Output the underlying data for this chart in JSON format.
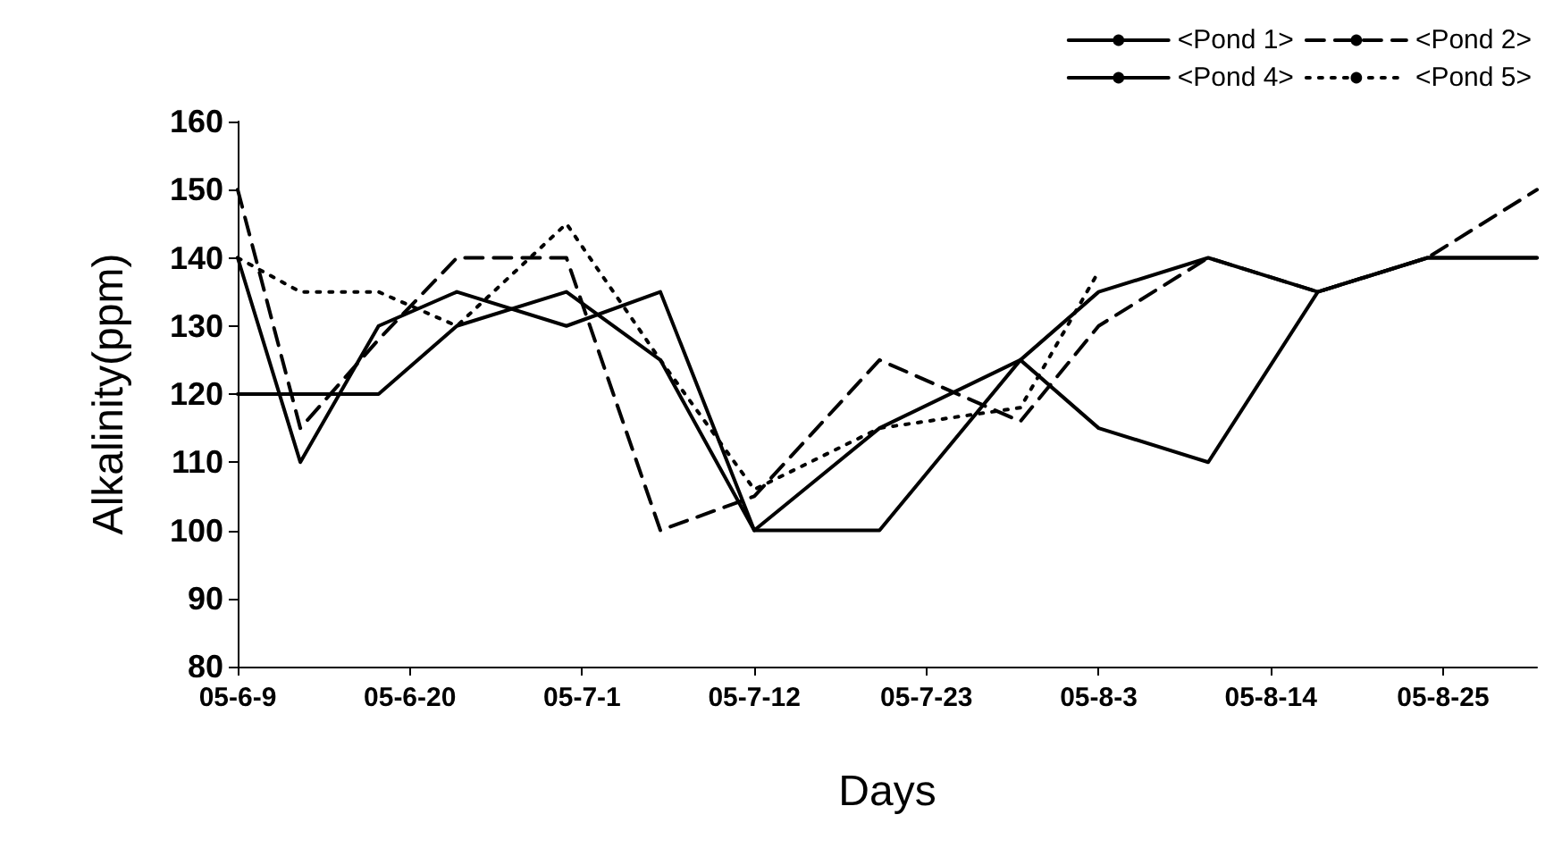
{
  "chart_data": {
    "type": "line",
    "xlabel": "Days",
    "ylabel": "Alkalinity(ppm)",
    "x": [
      "--06-09",
      "--06-13",
      "--06-18",
      "--06-23",
      "--06-30",
      "--07-06",
      "--07-12",
      "--07-20",
      "--07-29",
      "--08-03",
      "--08-10",
      "--08-17",
      "--08-24",
      "--08-31"
    ],
    "series": [
      {
        "name": "<Pond 1>",
        "color": "#000000",
        "line_style": "solid",
        "values": [
          140,
          110,
          130,
          135,
          130,
          135,
          100,
          115,
          125,
          115,
          110,
          135,
          140,
          140
        ]
      },
      {
        "name": "<Pond 2>",
        "color": "#000000",
        "line_style": "dashed",
        "values": [
          150,
          115,
          128,
          140,
          140,
          100,
          105,
          125,
          116,
          130,
          140,
          135,
          140,
          150
        ]
      },
      {
        "name": "<Pond 4>",
        "color": "#000000",
        "line_style": "solid",
        "values": [
          120,
          120,
          120,
          130,
          135,
          125,
          100,
          100,
          125,
          135,
          140,
          135,
          140,
          140
        ]
      },
      {
        "name": "<Pond 5>",
        "color": "#000000",
        "line_style": "dotted",
        "values": [
          140,
          135,
          135,
          130,
          145,
          125,
          106,
          115,
          118,
          138,
          null,
          null,
          null,
          null
        ]
      }
    ],
    "xlim": [
      "--06-09",
      "--08-31"
    ],
    "xticks": [
      {
        "value": "--06-09",
        "label": "05-6-9"
      },
      {
        "value": "--06-20",
        "label": "05-6-20"
      },
      {
        "value": "--07-01",
        "label": "05-7-1"
      },
      {
        "value": "--07-12",
        "label": "05-7-12"
      },
      {
        "value": "--07-23",
        "label": "05-7-23"
      },
      {
        "value": "--08-03",
        "label": "05-8-3"
      },
      {
        "value": "--08-14",
        "label": "05-8-14"
      },
      {
        "value": "--08-25",
        "label": "05-8-25"
      }
    ],
    "ylim": [
      80,
      160
    ],
    "yticks": [
      80,
      90,
      100,
      110,
      120,
      130,
      140,
      150,
      160
    ],
    "grid": false,
    "legend": "top right",
    "marker": "none"
  }
}
